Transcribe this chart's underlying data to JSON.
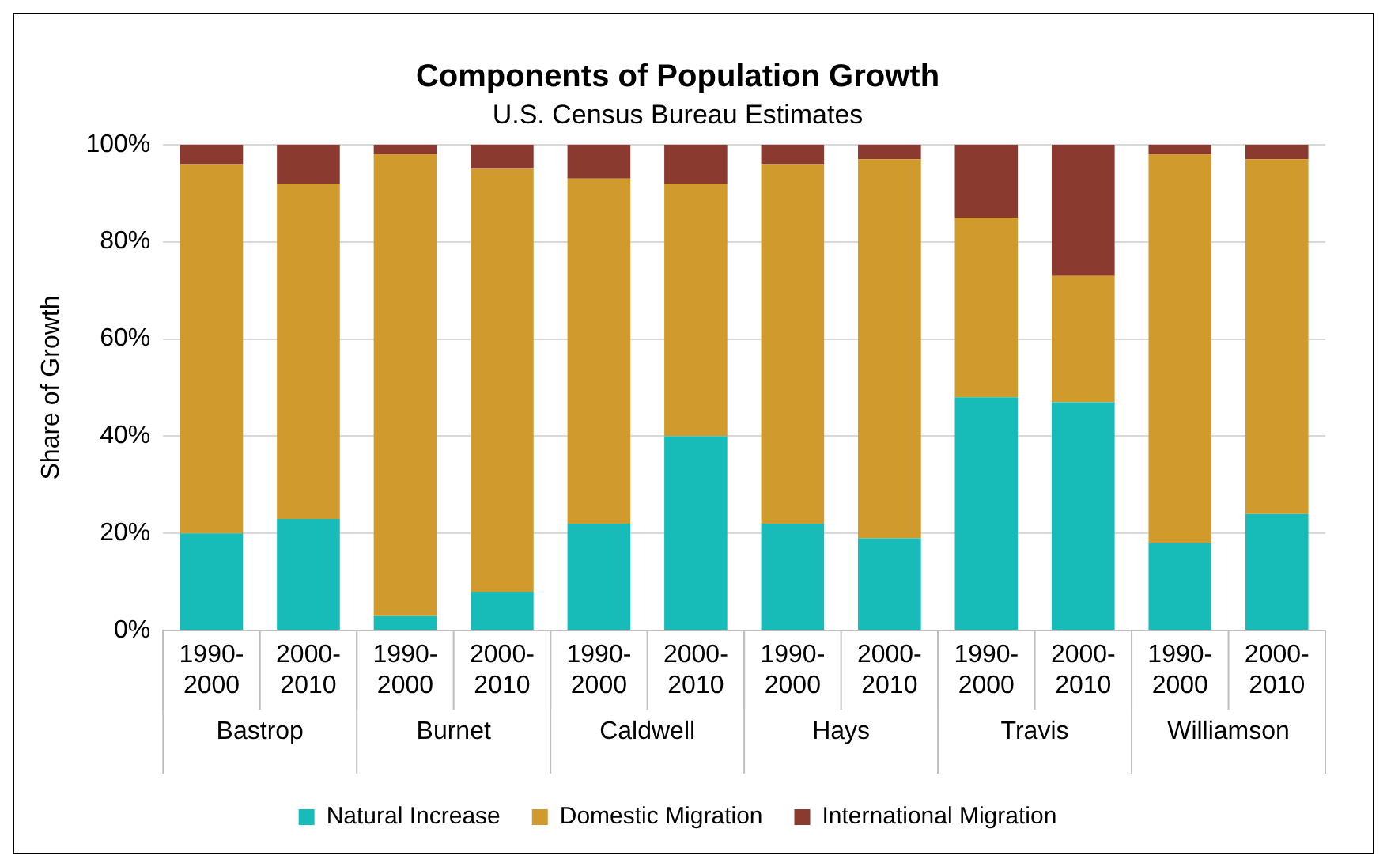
{
  "chart_data": {
    "type": "bar",
    "title": "Components of Population Growth",
    "subtitle": "U.S. Census Bureau Estimates",
    "ylabel": "Share of Growth",
    "categories": [
      "1990-2000",
      "2000-2010",
      "1990-2000",
      "2000-2010",
      "1990-2000",
      "2000-2010",
      "1990-2000",
      "2000-2010",
      "1990-2000",
      "2000-2010",
      "1990-2000",
      "2000-2010"
    ],
    "annotations": [
      "Bastrop",
      "Burnet",
      "Caldwell",
      "Hays",
      "Travis",
      "Williamson"
    ],
    "stacked": true,
    "series": [
      {
        "name": "Natural Increase",
        "color": "#17bcb8",
        "values": [
          20,
          23,
          3,
          8,
          22,
          40,
          22,
          19,
          48,
          47,
          18,
          24
        ]
      },
      {
        "name": "Domestic Migration",
        "color": "#d09b2c",
        "values": [
          76,
          69,
          95,
          87,
          71,
          52,
          74,
          78,
          37,
          26,
          80,
          73
        ]
      },
      {
        "name": "International Migration",
        "color": "#8b3a2f",
        "values": [
          4,
          8,
          2,
          5,
          7,
          8,
          4,
          3,
          15,
          27,
          2,
          3
        ]
      }
    ],
    "ylim": [
      0,
      100
    ],
    "yticks": [
      {
        "value": 0,
        "label": "0%"
      },
      {
        "value": 20,
        "label": "20%"
      },
      {
        "value": 40,
        "label": "40%"
      },
      {
        "value": 60,
        "label": "60%"
      },
      {
        "value": 80,
        "label": "80%"
      },
      {
        "value": 100,
        "label": "100%"
      }
    ],
    "grid": "y",
    "legend": "bottom"
  }
}
